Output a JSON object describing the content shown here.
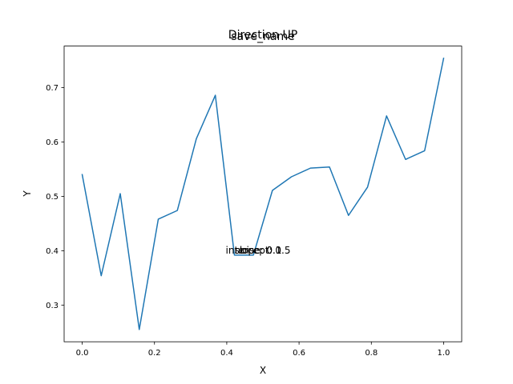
{
  "chart_data": {
    "type": "line",
    "title": "save_name",
    "overlay_title": "Direction UP",
    "annotations": [
      "intercept: 0.5",
      "slope: 0.1",
      "noise: 0.1"
    ],
    "xlabel": "X",
    "ylabel": "Y",
    "xlim": [
      -0.05,
      1.05
    ],
    "ylim": [
      0.2325,
      0.7765
    ],
    "xticks": [
      0.0,
      0.2,
      0.4,
      0.6,
      0.8,
      1.0
    ],
    "xtick_labels": [
      "0.0",
      "0.2",
      "0.4",
      "0.6",
      "0.8",
      "1.0"
    ],
    "yticks": [
      0.3,
      0.4,
      0.5,
      0.6,
      0.7
    ],
    "ytick_labels": [
      "0.3",
      "0.4",
      "0.5",
      "0.6",
      "0.7"
    ],
    "grid": false,
    "legend": "none",
    "line_color": "#1f77b4",
    "overlay_title_color": "#ff0000",
    "x": [
      0.0,
      0.0526,
      0.1053,
      0.1579,
      0.2105,
      0.2632,
      0.3158,
      0.3684,
      0.4211,
      0.4737,
      0.5263,
      0.5789,
      0.6316,
      0.6842,
      0.7368,
      0.7895,
      0.8421,
      0.8947,
      0.9474,
      1.0
    ],
    "y": [
      0.54,
      0.354,
      0.505,
      0.255,
      0.458,
      0.474,
      0.606,
      0.686,
      0.392,
      0.392,
      0.511,
      0.536,
      0.552,
      0.554,
      0.465,
      0.517,
      0.648,
      0.568,
      0.584,
      0.754
    ]
  }
}
